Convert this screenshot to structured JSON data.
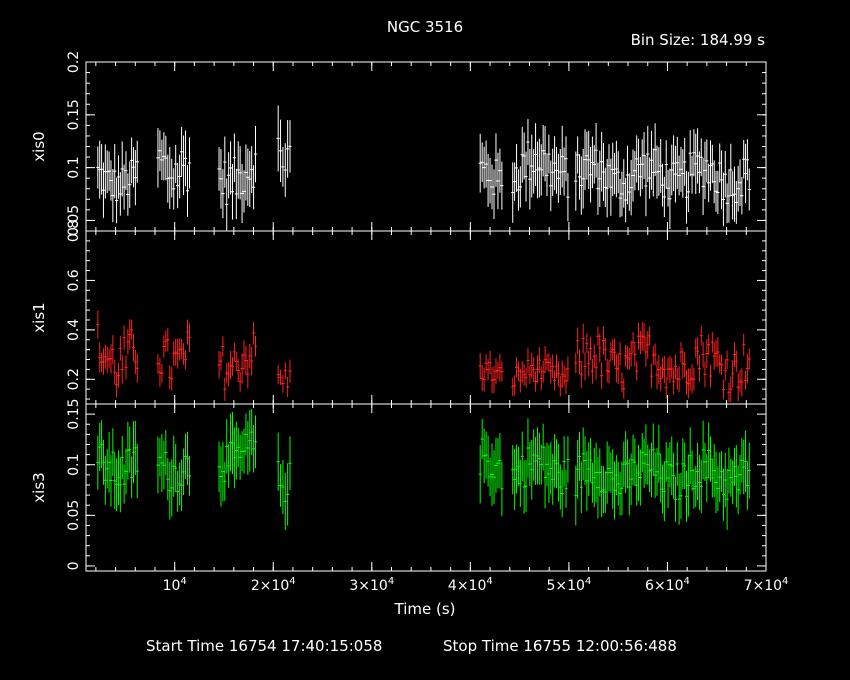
{
  "title": "NGC 3516",
  "bin_size_label": "Bin Size:  184.99  s",
  "footer": {
    "start_time": "Start Time 16754 17:40:15:058",
    "stop_time": "Stop Time 16755 12:00:56:488"
  },
  "chart_data": {
    "type": "scatter",
    "title": "NGC 3516",
    "xlabel": "Time (s)",
    "xlim": [
      1000,
      70000
    ],
    "x_ticks": [
      {
        "value": 10000,
        "base": "10",
        "exp": "4"
      },
      {
        "value": 20000,
        "base": "2×10",
        "exp": "4"
      },
      {
        "value": 30000,
        "base": "3×10",
        "exp": "4"
      },
      {
        "value": 40000,
        "base": "4×10",
        "exp": "4"
      },
      {
        "value": 50000,
        "base": "5×10",
        "exp": "4"
      },
      {
        "value": 60000,
        "base": "6×10",
        "exp": "4"
      },
      {
        "value": 70000,
        "base": "7×10",
        "exp": "4"
      }
    ],
    "panels": [
      {
        "ylabel": "xis0",
        "color": "#ffffff",
        "ylim": [
          0.04,
          0.2
        ],
        "y_ticks": [
          {
            "value": 0.05,
            "label": "0.05"
          },
          {
            "value": 0.1,
            "label": "0.1"
          },
          {
            "value": 0.15,
            "label": "0.15"
          },
          {
            "value": 0.2,
            "label": "0.2"
          }
        ],
        "segments": [
          {
            "start": 2200,
            "end": 6200,
            "mean": 0.09,
            "amp": 0.018,
            "err": 0.022
          },
          {
            "start": 8300,
            "end": 11500,
            "mean": 0.105,
            "amp": 0.028,
            "err": 0.024
          },
          {
            "start": 14500,
            "end": 18200,
            "mean": 0.095,
            "amp": 0.022,
            "err": 0.023
          },
          {
            "start": 20500,
            "end": 21700,
            "mean": 0.12,
            "amp": 0.025,
            "err": 0.025
          },
          {
            "start": 41000,
            "end": 43200,
            "mean": 0.09,
            "amp": 0.02,
            "err": 0.023
          },
          {
            "start": 44300,
            "end": 49900,
            "mean": 0.1,
            "amp": 0.022,
            "err": 0.024
          },
          {
            "start": 50700,
            "end": 68300,
            "mean": 0.093,
            "amp": 0.02,
            "err": 0.023
          }
        ]
      },
      {
        "ylabel": "xis1",
        "color": "#ff2020",
        "ylim": [
          0.1,
          0.8
        ],
        "y_ticks": [
          {
            "value": 0.2,
            "label": "0.2"
          },
          {
            "value": 0.4,
            "label": "0.4"
          },
          {
            "value": 0.6,
            "label": "0.6"
          },
          {
            "value": 0.8,
            "label": "0.8"
          }
        ],
        "segments": [
          {
            "start": 2200,
            "end": 6200,
            "mean": 0.3,
            "amp": 0.11,
            "err": 0.05
          },
          {
            "start": 8300,
            "end": 11500,
            "mean": 0.3,
            "amp": 0.1,
            "err": 0.05
          },
          {
            "start": 14500,
            "end": 18200,
            "mean": 0.28,
            "amp": 0.09,
            "err": 0.05
          },
          {
            "start": 20500,
            "end": 21700,
            "mean": 0.22,
            "amp": 0.05,
            "err": 0.04
          },
          {
            "start": 41000,
            "end": 43200,
            "mean": 0.22,
            "amp": 0.05,
            "err": 0.045
          },
          {
            "start": 44300,
            "end": 49900,
            "mean": 0.22,
            "amp": 0.05,
            "err": 0.045
          },
          {
            "start": 50700,
            "end": 68300,
            "mean": 0.27,
            "amp": 0.09,
            "err": 0.05
          }
        ]
      },
      {
        "ylabel": "xis3",
        "color": "#00ff00",
        "ylim": [
          -0.005,
          0.16
        ],
        "y_ticks": [
          {
            "value": 0.0,
            "label": "0"
          },
          {
            "value": 0.05,
            "label": "0.05"
          },
          {
            "value": 0.1,
            "label": "0.1"
          },
          {
            "value": 0.15,
            "label": "0.15"
          }
        ],
        "segments": [
          {
            "start": 2200,
            "end": 6200,
            "mean": 0.1,
            "amp": 0.02,
            "err": 0.025
          },
          {
            "start": 8300,
            "end": 11500,
            "mean": 0.1,
            "amp": 0.02,
            "err": 0.025
          },
          {
            "start": 14500,
            "end": 18200,
            "mean": 0.11,
            "amp": 0.02,
            "err": 0.025
          },
          {
            "start": 20500,
            "end": 21700,
            "mean": 0.09,
            "amp": 0.02,
            "err": 0.025
          },
          {
            "start": 41000,
            "end": 43200,
            "mean": 0.1,
            "amp": 0.02,
            "err": 0.025
          },
          {
            "start": 44300,
            "end": 49900,
            "mean": 0.095,
            "amp": 0.02,
            "err": 0.025
          },
          {
            "start": 50700,
            "end": 68300,
            "mean": 0.09,
            "amp": 0.02,
            "err": 0.025
          }
        ]
      }
    ]
  }
}
